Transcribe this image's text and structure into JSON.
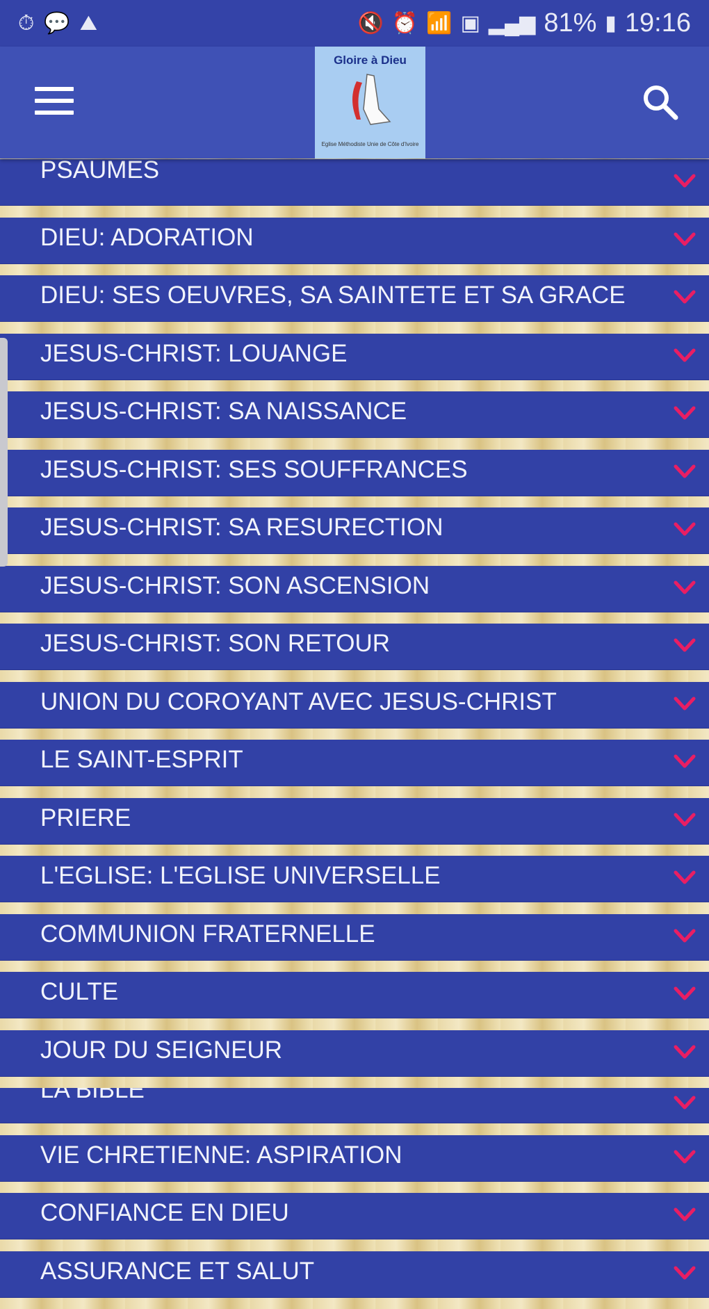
{
  "status_bar": {
    "left_icons": [
      "timer-icon",
      "message-icon",
      "gallery-icon"
    ],
    "right_icons": [
      "mute-icon",
      "alarm-icon",
      "wifi-icon",
      "sim-icon",
      "signal-icon",
      "signal-icon-2"
    ],
    "battery": "81%",
    "time": "19:16"
  },
  "app_bar": {
    "logo_title": "Gloire à Dieu",
    "logo_subtitle": "Eglise Méthodiste Unie de Côte d'Ivoire"
  },
  "colors": {
    "status_bar": "#3443a8",
    "app_bar": "#3f51b5",
    "row": "#3241a6",
    "chevron": "#e91e63"
  },
  "categories": [
    "PSAUMES",
    "DIEU: ADORATION",
    "DIEU: SES OEUVRES, SA SAINTETE ET SA GRACE",
    "JESUS-CHRIST: LOUANGE",
    "JESUS-CHRIST: SA NAISSANCE",
    "JESUS-CHRIST: SES SOUFFRANCES",
    "JESUS-CHRIST: SA RESURECTION",
    "JESUS-CHRIST: SON ASCENSION",
    "JESUS-CHRIST: SON RETOUR",
    "UNION DU COROYANT AVEC JESUS-CHRIST",
    "LE SAINT-ESPRIT",
    "PRIERE",
    "L'EGLISE: L'EGLISE UNIVERSELLE",
    "COMMUNION FRATERNELLE",
    "CULTE",
    "JOUR DU SEIGNEUR",
    "LA BIBLE",
    "VIE CHRETIENNE: ASPIRATION",
    "CONFIANCE EN DIEU",
    "ASSURANCE ET SALUT"
  ]
}
